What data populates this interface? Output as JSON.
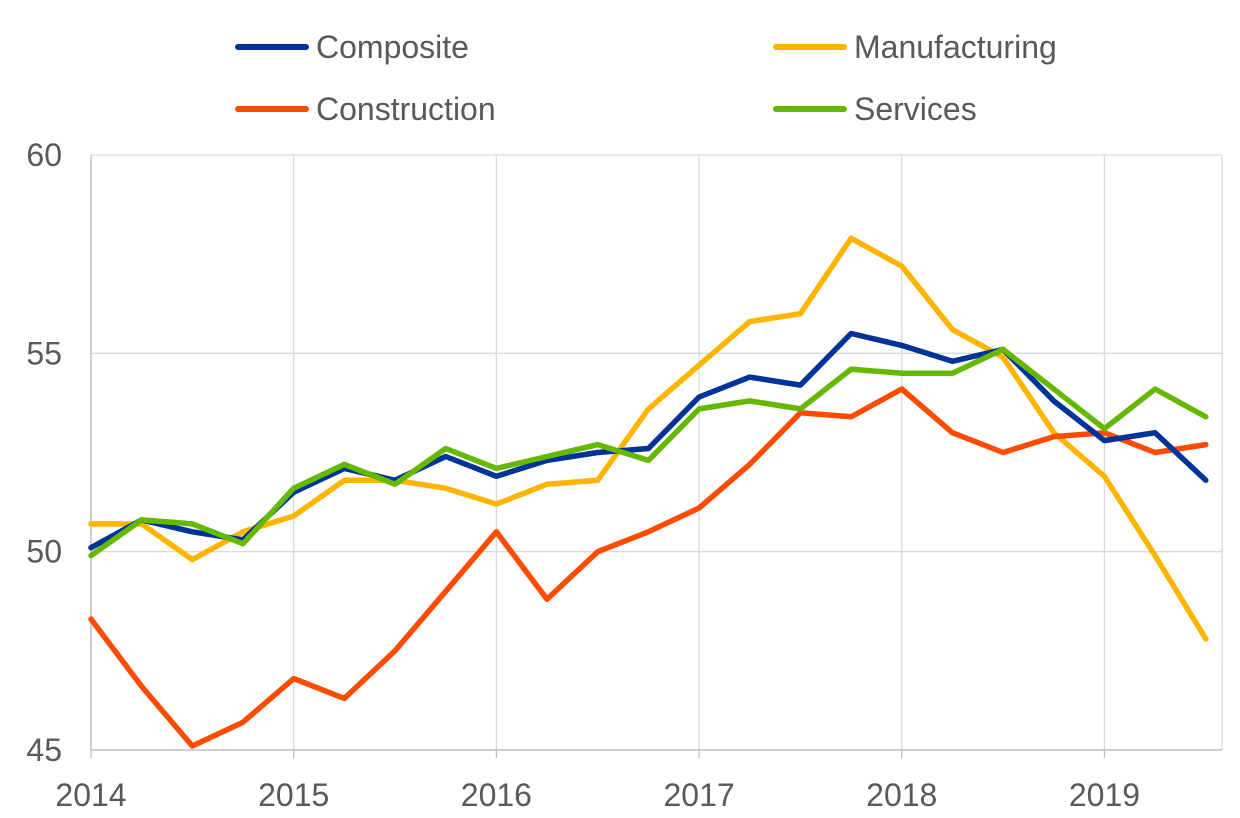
{
  "chart_data": {
    "type": "line",
    "title": "",
    "xlabel": "",
    "ylabel": "",
    "x_tick_labels": [
      "2014",
      "2015",
      "2016",
      "2017",
      "2018",
      "2019"
    ],
    "y_tick_labels": [
      "45",
      "50",
      "55",
      "60"
    ],
    "xlim": [
      2014.0,
      2019.58
    ],
    "ylim": [
      45,
      60
    ],
    "grid": true,
    "legend_position": "top",
    "x": [
      2014.0,
      2014.25,
      2014.5,
      2014.75,
      2015.0,
      2015.25,
      2015.5,
      2015.75,
      2016.0,
      2016.25,
      2016.5,
      2016.75,
      2017.0,
      2017.25,
      2017.5,
      2017.75,
      2018.0,
      2018.25,
      2018.5,
      2018.75,
      2019.0,
      2019.25,
      2019.5
    ],
    "series": [
      {
        "name": "Composite",
        "color": "#003399",
        "values": [
          50.1,
          50.8,
          50.5,
          50.3,
          51.5,
          52.1,
          51.8,
          52.4,
          51.9,
          52.3,
          52.5,
          52.6,
          53.9,
          54.4,
          54.2,
          55.5,
          55.2,
          54.8,
          55.1,
          53.8,
          52.8,
          53.0,
          51.8
        ]
      },
      {
        "name": "Manufacturing",
        "color": "#FFB400",
        "values": [
          50.7,
          50.7,
          49.8,
          50.5,
          50.9,
          51.8,
          51.8,
          51.6,
          51.2,
          51.7,
          51.8,
          53.6,
          54.7,
          55.8,
          56.0,
          57.9,
          57.2,
          55.6,
          54.9,
          53.0,
          51.9,
          49.9,
          47.8
        ]
      },
      {
        "name": "Construction",
        "color": "#FF4B00",
        "values": [
          48.3,
          46.6,
          45.1,
          45.7,
          46.8,
          46.3,
          47.5,
          49.0,
          50.5,
          48.8,
          50.0,
          50.5,
          51.1,
          52.2,
          53.5,
          53.4,
          54.1,
          53.0,
          52.5,
          52.9,
          53.0,
          52.5,
          52.7
        ]
      },
      {
        "name": "Services",
        "color": "#65B800",
        "values": [
          49.9,
          50.8,
          50.7,
          50.2,
          51.6,
          52.2,
          51.7,
          52.6,
          52.1,
          52.4,
          52.7,
          52.3,
          53.6,
          53.8,
          53.6,
          54.6,
          54.5,
          54.5,
          55.1,
          54.1,
          53.1,
          54.1,
          53.4
        ]
      }
    ]
  }
}
